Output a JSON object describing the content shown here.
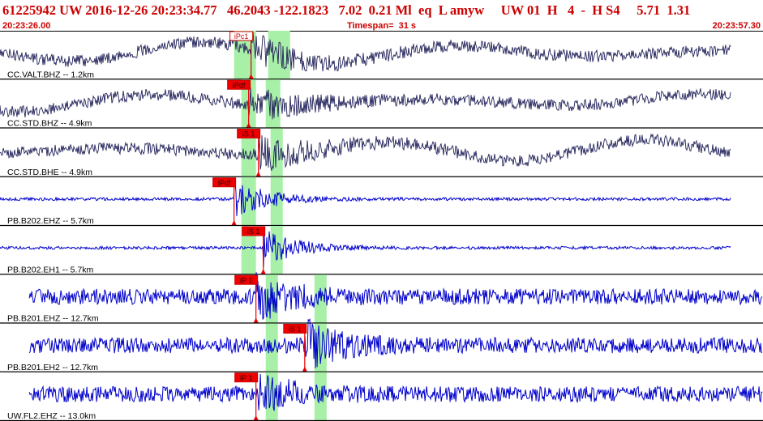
{
  "header": {
    "event_line": "61225942 UW 2016-12-26 20:23:34.77   46.2043 -122.1823   7.02  0.21 Ml  eq  L amyw     UW 01  H   4  -  H S4     5.71  1.31",
    "start_time": "20:23:26.00",
    "timespan": "Timespan=  31 s",
    "end_time": "20:23:57.30"
  },
  "colors": {
    "phase_box": "#ee0000",
    "phase_text_outline": "#cc0000",
    "pick_window": "#a8f0a8",
    "trace_dark": "#22225a",
    "trace_blue": "#0000cc",
    "divider": "#000000",
    "header_text": "#cc0000"
  },
  "panels": [
    {
      "label": "CC.VALT.BHZ -- 1.2km",
      "trace_color": "dark",
      "trace_start_s": 0,
      "trace_end_s": 30,
      "windows": [
        {
          "start_s": 9.6,
          "end_s": 10.5
        },
        {
          "start_s": 11.0,
          "end_s": 11.9
        }
      ],
      "picks": [
        {
          "label": "iPc1",
          "time_s": 10.3,
          "style": "outline"
        }
      ]
    },
    {
      "label": "CC.STD.BHZ -- 4.9km",
      "trace_color": "dark",
      "trace_start_s": 0,
      "trace_end_s": 30,
      "windows": [
        {
          "start_s": 9.9,
          "end_s": 10.5
        },
        {
          "start_s": 10.9,
          "end_s": 11.5
        }
      ],
      "picks": [
        {
          "label": "iPdf",
          "time_s": 10.2,
          "style": "filled"
        }
      ]
    },
    {
      "label": "CC.STD.BHE -- 4.9km",
      "trace_color": "dark",
      "trace_start_s": 0,
      "trace_end_s": 30,
      "windows": [
        {
          "start_s": 9.9,
          "end_s": 10.5
        },
        {
          "start_s": 11.1,
          "end_s": 11.6
        }
      ],
      "picks": [
        {
          "label": "iS 1",
          "time_s": 10.6,
          "style": "filled"
        }
      ]
    },
    {
      "label": "PB.B202.EHZ -- 5.7km",
      "trace_color": "blue",
      "trace_start_s": 0,
      "trace_end_s": 30,
      "windows": [
        {
          "start_s": 9.9,
          "end_s": 10.5
        },
        {
          "start_s": 11.1,
          "end_s": 11.6
        }
      ],
      "picks": [
        {
          "label": "iPdf",
          "time_s": 9.6,
          "style": "filled"
        }
      ]
    },
    {
      "label": "PB.B202.EH1 -- 5.7km",
      "trace_color": "blue",
      "trace_start_s": 0,
      "trace_end_s": 30,
      "windows": [
        {
          "start_s": 9.9,
          "end_s": 10.5
        },
        {
          "start_s": 11.1,
          "end_s": 11.6
        }
      ],
      "picks": [
        {
          "label": "iS 1",
          "time_s": 10.8,
          "style": "filled"
        }
      ]
    },
    {
      "label": "PB.B201.EHZ -- 12.7km",
      "trace_color": "blue",
      "trace_start_s": 1.2,
      "trace_end_s": 31.3,
      "windows": [
        {
          "start_s": 10.9,
          "end_s": 11.4
        },
        {
          "start_s": 12.9,
          "end_s": 13.4
        }
      ],
      "picks": [
        {
          "label": "iP 1",
          "time_s": 10.5,
          "style": "filled"
        }
      ]
    },
    {
      "label": "PB.B201.EH2 -- 12.7km",
      "trace_color": "blue",
      "trace_start_s": 1.2,
      "trace_end_s": 31.3,
      "windows": [
        {
          "start_s": 10.9,
          "end_s": 11.4
        },
        {
          "start_s": 12.9,
          "end_s": 13.4
        }
      ],
      "picks": [
        {
          "label": "iS 1",
          "time_s": 12.5,
          "style": "filled"
        }
      ]
    },
    {
      "label": "UW.FL2.EHZ -- 13.0km",
      "trace_color": "blue",
      "trace_start_s": 1.2,
      "trace_end_s": 31.3,
      "windows": [
        {
          "start_s": 10.9,
          "end_s": 11.4
        },
        {
          "start_s": 12.9,
          "end_s": 13.4
        }
      ],
      "picks": [
        {
          "label": "iP 1",
          "time_s": 10.5,
          "style": "filled"
        }
      ]
    }
  ]
}
